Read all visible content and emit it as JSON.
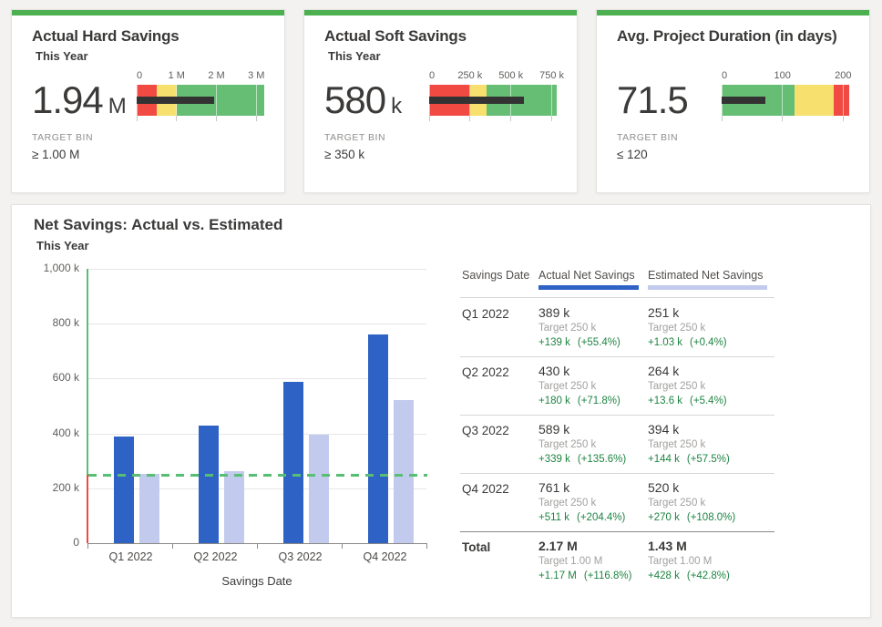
{
  "colors": {
    "accent_green": "#4CAF50",
    "band_red": "#F04A42",
    "band_yellow": "#F7E06E",
    "band_green": "#65BE73",
    "measure_black": "#333333",
    "bar_actual": "#2F62C5",
    "bar_estimated": "#C2CBED",
    "target_line_green": "#57BE73",
    "axis_below_target_red": "#F04A42",
    "positive_delta_green": "#1E8442",
    "muted_gray": "#A3A19F"
  },
  "kpi_cards": [
    {
      "subtitle": "This Year",
      "value": "1.94",
      "value_suffix": "M",
      "target_bin_label": "TARGET BIN",
      "target_bin_value": "≥ 1.00 M"
    },
    {
      "subtitle": "This Year",
      "value": "580",
      "value_suffix": "k",
      "target_bin_label": "TARGET BIN",
      "target_bin_value": "≥ 350 k"
    },
    {
      "subtitle": "",
      "value": "71.5",
      "value_suffix": "",
      "target_bin_label": "TARGET BIN",
      "target_bin_value": "≤ 120"
    }
  ],
  "chart_data": [
    {
      "type": "bullet",
      "title": "Actual Hard Savings",
      "value": 1.94,
      "unit": "M",
      "scale_max": 3.2,
      "ticks": [
        {
          "label": "0",
          "value": 0
        },
        {
          "label": "1 M",
          "value": 1
        },
        {
          "label": "2 M",
          "value": 2
        },
        {
          "label": "3 M",
          "value": 3
        }
      ],
      "bands": [
        {
          "color_name": "red",
          "from": 0,
          "to": 0.5
        },
        {
          "color_name": "yellow",
          "from": 0.5,
          "to": 1.0
        },
        {
          "color_name": "green",
          "from": 1.0,
          "to": 3.2
        }
      ]
    },
    {
      "type": "bullet",
      "title": "Actual Soft Savings",
      "value": 580,
      "unit": "k",
      "scale_max": 780,
      "ticks": [
        {
          "label": "0",
          "value": 0
        },
        {
          "label": "250 k",
          "value": 250
        },
        {
          "label": "500 k",
          "value": 500
        },
        {
          "label": "750 k",
          "value": 750
        }
      ],
      "bands": [
        {
          "color_name": "red",
          "from": 0,
          "to": 250
        },
        {
          "color_name": "yellow",
          "from": 250,
          "to": 350
        },
        {
          "color_name": "green",
          "from": 350,
          "to": 780
        }
      ]
    },
    {
      "type": "bullet",
      "title": "Avg. Project Duration (in days)",
      "value": 71.5,
      "unit": "days",
      "scale_max": 210,
      "ticks": [
        {
          "label": "0",
          "value": 0
        },
        {
          "label": "100",
          "value": 100
        },
        {
          "label": "200",
          "value": 200
        }
      ],
      "bands": [
        {
          "color_name": "green",
          "from": 0,
          "to": 120
        },
        {
          "color_name": "yellow",
          "from": 120,
          "to": 185
        },
        {
          "color_name": "red",
          "from": 185,
          "to": 210
        }
      ]
    },
    {
      "type": "bar",
      "title": "Net Savings: Actual vs. Estimated",
      "subtitle": "This Year",
      "categories": [
        "Q1 2022",
        "Q2 2022",
        "Q3 2022",
        "Q4 2022"
      ],
      "series": [
        {
          "name": "Actual Net Savings",
          "values": [
            389,
            430,
            589,
            761
          ]
        },
        {
          "name": "Estimated Net Savings",
          "values": [
            251,
            264,
            394,
            520
          ]
        }
      ],
      "unit": "k",
      "target": 250,
      "ylim": [
        0,
        1000
      ],
      "yticks": [
        {
          "value": 0,
          "label": "0"
        },
        {
          "value": 200,
          "label": "200 k"
        },
        {
          "value": 400,
          "label": "400 k"
        },
        {
          "value": 600,
          "label": "600 k"
        },
        {
          "value": 800,
          "label": "800 k"
        },
        {
          "value": 1000,
          "label": "1,000 k"
        }
      ],
      "xlabel": "Savings Date",
      "grid": true,
      "legend_position": "table-headers"
    },
    {
      "type": "table",
      "columns": [
        "Savings Date",
        "Actual Net Savings",
        "Estimated Net Savings"
      ],
      "rows": [
        {
          "label": "Q1 2022",
          "actual": {
            "value": "389 k",
            "target": "Target 250 k",
            "delta": "+139 k",
            "delta_pct": "(+55.4%)"
          },
          "estimated": {
            "value": "251 k",
            "target": "Target 250 k",
            "delta": "+1.03 k",
            "delta_pct": "(+0.4%)"
          }
        },
        {
          "label": "Q2 2022",
          "actual": {
            "value": "430 k",
            "target": "Target 250 k",
            "delta": "+180 k",
            "delta_pct": "(+71.8%)"
          },
          "estimated": {
            "value": "264 k",
            "target": "Target 250 k",
            "delta": "+13.6 k",
            "delta_pct": "(+5.4%)"
          }
        },
        {
          "label": "Q3 2022",
          "actual": {
            "value": "589 k",
            "target": "Target 250 k",
            "delta": "+339 k",
            "delta_pct": "(+135.6%)"
          },
          "estimated": {
            "value": "394 k",
            "target": "Target 250 k",
            "delta": "+144 k",
            "delta_pct": "(+57.5%)"
          }
        },
        {
          "label": "Q4 2022",
          "actual": {
            "value": "761 k",
            "target": "Target 250 k",
            "delta": "+511 k",
            "delta_pct": "(+204.4%)"
          },
          "estimated": {
            "value": "520 k",
            "target": "Target 250 k",
            "delta": "+270 k",
            "delta_pct": "(+108.0%)"
          }
        }
      ],
      "total": {
        "label": "Total",
        "actual": {
          "value": "2.17 M",
          "target": "Target 1.00 M",
          "delta": "+1.17 M",
          "delta_pct": "(+116.8%)"
        },
        "estimated": {
          "value": "1.43 M",
          "target": "Target 1.00 M",
          "delta": "+428 k",
          "delta_pct": "(+42.8%)"
        }
      }
    }
  ]
}
